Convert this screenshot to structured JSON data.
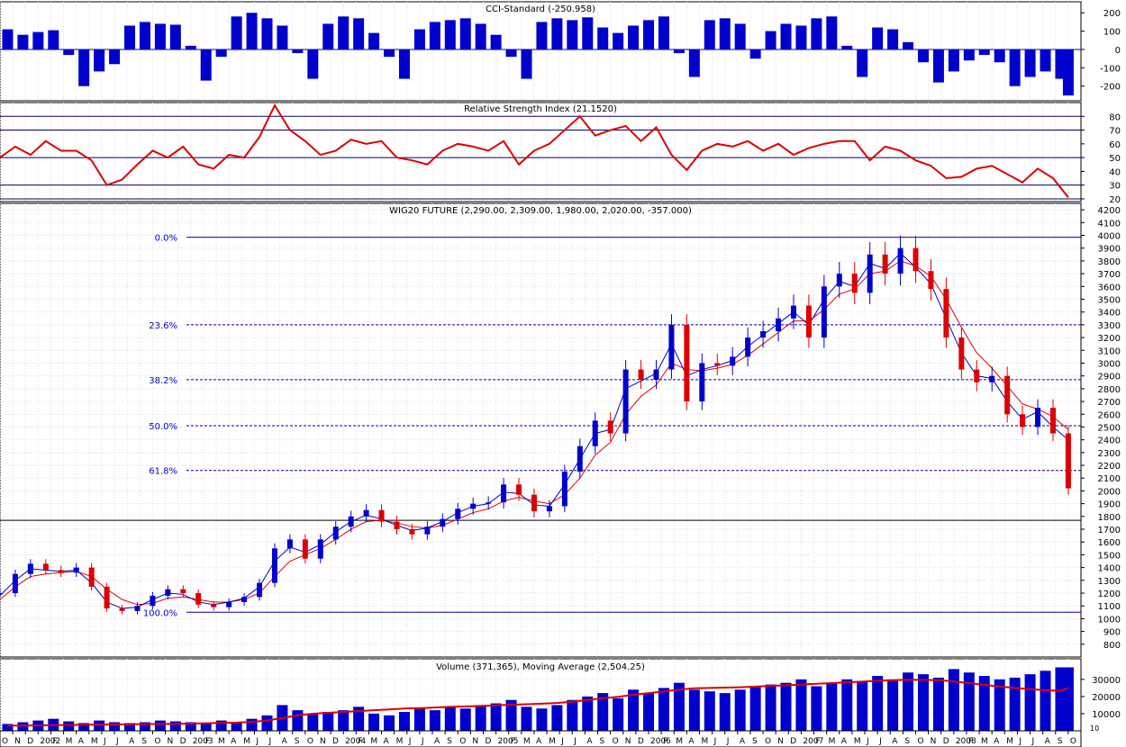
{
  "chart_data": [
    {
      "type": "bar",
      "title": "CCI-Standard (-250.958)",
      "ylim": [
        -280,
        260
      ],
      "y_ticks": [
        200,
        100,
        0,
        -100,
        -200
      ],
      "y_tick_labels": [
        "200",
        "100",
        "0",
        "-100",
        "-200"
      ],
      "series_color": "#0000cc",
      "x_range": [
        2001.75,
        2008.83
      ],
      "x": [
        2001.8,
        2001.9,
        2002.0,
        2002.1,
        2002.2,
        2002.3,
        2002.4,
        2002.5,
        2002.6,
        2002.7,
        2002.8,
        2002.9,
        2003.0,
        2003.1,
        2003.2,
        2003.3,
        2003.4,
        2003.5,
        2003.6,
        2003.7,
        2003.8,
        2003.9,
        2004.0,
        2004.1,
        2004.2,
        2004.3,
        2004.4,
        2004.5,
        2004.6,
        2004.7,
        2004.8,
        2004.9,
        2005.0,
        2005.1,
        2005.2,
        2005.3,
        2005.4,
        2005.5,
        2005.6,
        2005.7,
        2005.8,
        2005.9,
        2006.0,
        2006.1,
        2006.2,
        2006.3,
        2006.4,
        2006.5,
        2006.6,
        2006.7,
        2006.8,
        2006.9,
        2007.0,
        2007.1,
        2007.2,
        2007.3,
        2007.4,
        2007.5,
        2007.6,
        2007.7,
        2007.8,
        2007.9,
        2008.0,
        2008.1,
        2008.2,
        2008.3,
        2008.4,
        2008.5,
        2008.6,
        2008.7,
        2008.75
      ],
      "values": [
        110,
        80,
        95,
        105,
        -30,
        -200,
        -120,
        -80,
        130,
        150,
        140,
        135,
        20,
        -170,
        -40,
        180,
        200,
        170,
        130,
        -20,
        -160,
        140,
        180,
        170,
        90,
        -40,
        -160,
        110,
        150,
        160,
        170,
        140,
        80,
        -40,
        -160,
        150,
        170,
        160,
        175,
        120,
        90,
        130,
        160,
        180,
        -20,
        -150,
        160,
        170,
        140,
        -50,
        100,
        140,
        130,
        170,
        180,
        20,
        -150,
        120,
        110,
        40,
        -70,
        -180,
        -120,
        -60,
        -30,
        -70,
        -200,
        -150,
        -120,
        -160,
        -251
      ]
    },
    {
      "type": "line",
      "title": "Relative Strength Index (21.1520)",
      "ylim": [
        18,
        90
      ],
      "y_ticks": [
        80,
        70,
        60,
        50,
        40,
        30,
        20
      ],
      "y_tick_labels": [
        "80",
        "70",
        "60",
        "50",
        "40",
        "30",
        "20"
      ],
      "levels": [
        80,
        70,
        50,
        30,
        20
      ],
      "x": [
        2001.75,
        2001.85,
        2001.95,
        2002.05,
        2002.15,
        2002.25,
        2002.35,
        2002.45,
        2002.55,
        2002.65,
        2002.75,
        2002.85,
        2002.95,
        2003.05,
        2003.15,
        2003.25,
        2003.35,
        2003.45,
        2003.55,
        2003.65,
        2003.75,
        2003.85,
        2003.95,
        2004.05,
        2004.15,
        2004.25,
        2004.35,
        2004.45,
        2004.55,
        2004.65,
        2004.75,
        2004.85,
        2004.95,
        2005.05,
        2005.15,
        2005.25,
        2005.35,
        2005.45,
        2005.55,
        2005.65,
        2005.75,
        2005.85,
        2005.95,
        2006.05,
        2006.15,
        2006.25,
        2006.35,
        2006.45,
        2006.55,
        2006.65,
        2006.75,
        2006.85,
        2006.95,
        2007.05,
        2007.15,
        2007.25,
        2007.35,
        2007.45,
        2007.55,
        2007.65,
        2007.75,
        2007.85,
        2007.95,
        2008.05,
        2008.15,
        2008.25,
        2008.35,
        2008.45,
        2008.55,
        2008.65,
        2008.75
      ],
      "values": [
        50,
        58,
        52,
        62,
        55,
        55,
        48,
        30,
        34,
        45,
        55,
        50,
        58,
        45,
        42,
        52,
        50,
        65,
        88,
        70,
        62,
        52,
        55,
        63,
        60,
        62,
        50,
        48,
        45,
        55,
        60,
        58,
        55,
        62,
        45,
        55,
        60,
        70,
        80,
        66,
        70,
        73,
        62,
        72,
        52,
        41,
        55,
        60,
        58,
        62,
        55,
        60,
        52,
        57,
        60,
        62,
        62,
        48,
        58,
        55,
        48,
        44,
        35,
        36,
        42,
        44,
        38,
        32,
        42,
        35,
        21
      ]
    },
    {
      "type": "candlestick",
      "title": "WIG20 FUTURE (2,290.00, 2,309.00, 1,980.00, 2,020.00, -357.000)",
      "ylim": [
        700,
        4250
      ],
      "y_ticks": [
        4200,
        4100,
        4000,
        3900,
        3800,
        3700,
        3600,
        3500,
        3400,
        3300,
        3200,
        3100,
        3000,
        2900,
        2800,
        2700,
        2600,
        2500,
        2400,
        2300,
        2200,
        2100,
        2000,
        1900,
        1800,
        1700,
        1600,
        1500,
        1400,
        1300,
        1200,
        1100,
        1000,
        900,
        800
      ],
      "y_tick_labels": [
        "4200",
        "4100",
        "4000",
        "3900",
        "3800",
        "3700",
        "3600",
        "3500",
        "3400",
        "3300",
        "3200",
        "3100",
        "3000",
        "2900",
        "2800",
        "2700",
        "2600",
        "2500",
        "2400",
        "2300",
        "2200",
        "2100",
        "2000",
        "1900",
        "1800",
        "1700",
        "1600",
        "1500",
        "1400",
        "1300",
        "1200",
        "1100",
        "1000",
        "900",
        "800"
      ],
      "fibonacci": {
        "levels": [
          "0.0%",
          "23.6%",
          "38.2%",
          "50.0%",
          "61.8%",
          "100.0%"
        ],
        "values": [
          3985,
          3300,
          2870,
          2510,
          2160,
          1050
        ]
      },
      "x": [
        2001.75,
        2001.85,
        2001.95,
        2002.05,
        2002.15,
        2002.25,
        2002.35,
        2002.45,
        2002.55,
        2002.65,
        2002.75,
        2002.85,
        2002.95,
        2003.05,
        2003.15,
        2003.25,
        2003.35,
        2003.45,
        2003.55,
        2003.65,
        2003.75,
        2003.85,
        2003.95,
        2004.05,
        2004.15,
        2004.25,
        2004.35,
        2004.45,
        2004.55,
        2004.65,
        2004.75,
        2004.85,
        2004.95,
        2005.05,
        2005.15,
        2005.25,
        2005.35,
        2005.45,
        2005.55,
        2005.65,
        2005.75,
        2005.85,
        2005.95,
        2006.05,
        2006.15,
        2006.25,
        2006.35,
        2006.45,
        2006.55,
        2006.65,
        2006.75,
        2006.85,
        2006.95,
        2007.05,
        2007.15,
        2007.25,
        2007.35,
        2007.45,
        2007.55,
        2007.65,
        2007.75,
        2007.85,
        2007.95,
        2008.05,
        2008.15,
        2008.25,
        2008.35,
        2008.45,
        2008.55,
        2008.65,
        2008.75
      ],
      "close": [
        1200,
        1350,
        1430,
        1380,
        1360,
        1400,
        1250,
        1080,
        1060,
        1100,
        1180,
        1230,
        1200,
        1110,
        1090,
        1130,
        1170,
        1280,
        1550,
        1620,
        1470,
        1620,
        1720,
        1800,
        1850,
        1760,
        1700,
        1660,
        1720,
        1780,
        1860,
        1900,
        1910,
        2050,
        1970,
        1840,
        1880,
        2150,
        2350,
        2550,
        2450,
        2950,
        2870,
        2950,
        3300,
        2700,
        3000,
        2980,
        3050,
        3200,
        3250,
        3350,
        3450,
        3200,
        3600,
        3700,
        3550,
        3850,
        3700,
        3900,
        3720,
        3580,
        3200,
        2950,
        2850,
        2900,
        2600,
        2500,
        2650,
        2450,
        2020
      ],
      "ma_fast": [
        1180,
        1300,
        1390,
        1380,
        1370,
        1380,
        1280,
        1130,
        1080,
        1090,
        1150,
        1200,
        1190,
        1130,
        1110,
        1130,
        1160,
        1250,
        1450,
        1560,
        1520,
        1580,
        1680,
        1760,
        1810,
        1780,
        1730,
        1690,
        1710,
        1760,
        1830,
        1880,
        1900,
        1990,
        1980,
        1890,
        1880,
        2050,
        2250,
        2450,
        2480,
        2800,
        2860,
        2920,
        3150,
        2900,
        2950,
        2980,
        3020,
        3130,
        3220,
        3310,
        3400,
        3300,
        3500,
        3640,
        3600,
        3780,
        3740,
        3860,
        3750,
        3620,
        3350,
        3080,
        2900,
        2880,
        2700,
        2560,
        2620,
        2500,
        2400
      ],
      "ma_slow": [
        1150,
        1250,
        1330,
        1350,
        1360,
        1370,
        1330,
        1230,
        1150,
        1110,
        1120,
        1160,
        1170,
        1150,
        1130,
        1130,
        1150,
        1200,
        1330,
        1450,
        1500,
        1550,
        1620,
        1700,
        1760,
        1770,
        1750,
        1720,
        1710,
        1730,
        1780,
        1830,
        1860,
        1920,
        1950,
        1920,
        1900,
        1970,
        2100,
        2280,
        2380,
        2600,
        2740,
        2830,
        3000,
        2950,
        2940,
        2960,
        2990,
        3060,
        3150,
        3240,
        3330,
        3330,
        3420,
        3540,
        3580,
        3700,
        3720,
        3800,
        3760,
        3680,
        3500,
        3280,
        3080,
        2960,
        2820,
        2680,
        2640,
        2580,
        2480
      ]
    },
    {
      "type": "bar",
      "title": "Volume (371,365), Moving Average (2,504.25)",
      "ylim": [
        0,
        42000
      ],
      "y_ticks": [
        30000,
        20000,
        10000
      ],
      "y_tick_labels": [
        "30000",
        "20000",
        "10000"
      ],
      "x": [
        2001.8,
        2001.9,
        2002.0,
        2002.1,
        2002.2,
        2002.3,
        2002.4,
        2002.5,
        2002.6,
        2002.7,
        2002.8,
        2002.9,
        2003.0,
        2003.1,
        2003.2,
        2003.3,
        2003.4,
        2003.5,
        2003.6,
        2003.7,
        2003.8,
        2003.9,
        2004.0,
        2004.1,
        2004.2,
        2004.3,
        2004.4,
        2004.5,
        2004.6,
        2004.7,
        2004.8,
        2004.9,
        2005.0,
        2005.1,
        2005.2,
        2005.3,
        2005.4,
        2005.5,
        2005.6,
        2005.7,
        2005.8,
        2005.9,
        2006.0,
        2006.1,
        2006.2,
        2006.3,
        2006.4,
        2006.5,
        2006.6,
        2006.7,
        2006.8,
        2006.9,
        2007.0,
        2007.1,
        2007.2,
        2007.3,
        2007.4,
        2007.5,
        2007.6,
        2007.7,
        2007.8,
        2007.9,
        2008.0,
        2008.1,
        2008.2,
        2008.3,
        2008.4,
        2008.5,
        2008.6,
        2008.7,
        2008.75
      ],
      "values": [
        4000,
        5000,
        6000,
        7000,
        5500,
        4500,
        6000,
        5000,
        4500,
        5000,
        6000,
        5500,
        5000,
        4500,
        6000,
        5000,
        7000,
        9000,
        15000,
        12000,
        10000,
        11000,
        12000,
        14000,
        10000,
        9000,
        11000,
        13000,
        12000,
        14000,
        13000,
        15000,
        16000,
        18000,
        14000,
        13000,
        15000,
        18000,
        20000,
        22000,
        19000,
        24000,
        22000,
        25000,
        28000,
        24000,
        23000,
        22000,
        24000,
        26000,
        27000,
        28000,
        30000,
        26000,
        28000,
        30000,
        29000,
        32000,
        30000,
        34000,
        33000,
        31000,
        36000,
        34000,
        32000,
        30000,
        31000,
        33000,
        35000,
        37000,
        37000
      ],
      "moving_average": [
        3000,
        3100,
        3200,
        3300,
        3400,
        3500,
        3600,
        3700,
        3800,
        3900,
        4000,
        4100,
        4200,
        4400,
        4600,
        4800,
        5200,
        6000,
        7500,
        9000,
        10000,
        10500,
        11000,
        11500,
        12000,
        12500,
        13000,
        13200,
        13600,
        14000,
        14200,
        14500,
        14800,
        15200,
        15500,
        15800,
        16200,
        17000,
        18000,
        19000,
        19800,
        21000,
        22000,
        23000,
        24000,
        24800,
        25000,
        25200,
        25400,
        25800,
        26200,
        26600,
        27000,
        27400,
        27800,
        28300,
        28700,
        29200,
        29500,
        29800,
        29700,
        29500,
        28800,
        27800,
        26800,
        25800,
        25000,
        24300,
        23700,
        23300,
        25042
      ]
    }
  ],
  "x_axis": {
    "labels": [
      "O",
      "N",
      "D",
      "2002",
      "F",
      "M",
      "A",
      "M",
      "J",
      "J",
      "A",
      "S",
      "O",
      "N",
      "D",
      "2003",
      "F",
      "M",
      "A",
      "M",
      "J",
      "J",
      "A",
      "S",
      "O",
      "N",
      "D",
      "2004",
      "F",
      "M",
      "A",
      "M",
      "J",
      "J",
      "A",
      "S",
      "O",
      "N",
      "D",
      "2005",
      "F",
      "M",
      "A",
      "M",
      "J",
      "J",
      "A",
      "S",
      "O",
      "N",
      "D",
      "2006",
      "F",
      "M",
      "A",
      "M",
      "J",
      "J",
      "A",
      "S",
      "O",
      "N",
      "D",
      "2007",
      "F",
      "M",
      "A",
      "M",
      "J",
      "J",
      "A",
      "S",
      "O",
      "N",
      "D",
      "2008",
      "F",
      "M",
      "A",
      "M",
      "J",
      "J",
      "A",
      "S",
      "O"
    ],
    "start": 2001.75,
    "step": 0.08333
  },
  "corner_label": "10",
  "colors": {
    "bull": "#0000cc",
    "bear": "#dd0000",
    "neutral": "#000000",
    "ma_fast": "#0000cc",
    "ma_slow": "#dd0000",
    "rsi_line": "#dd0000",
    "grid": "#dddddd"
  }
}
